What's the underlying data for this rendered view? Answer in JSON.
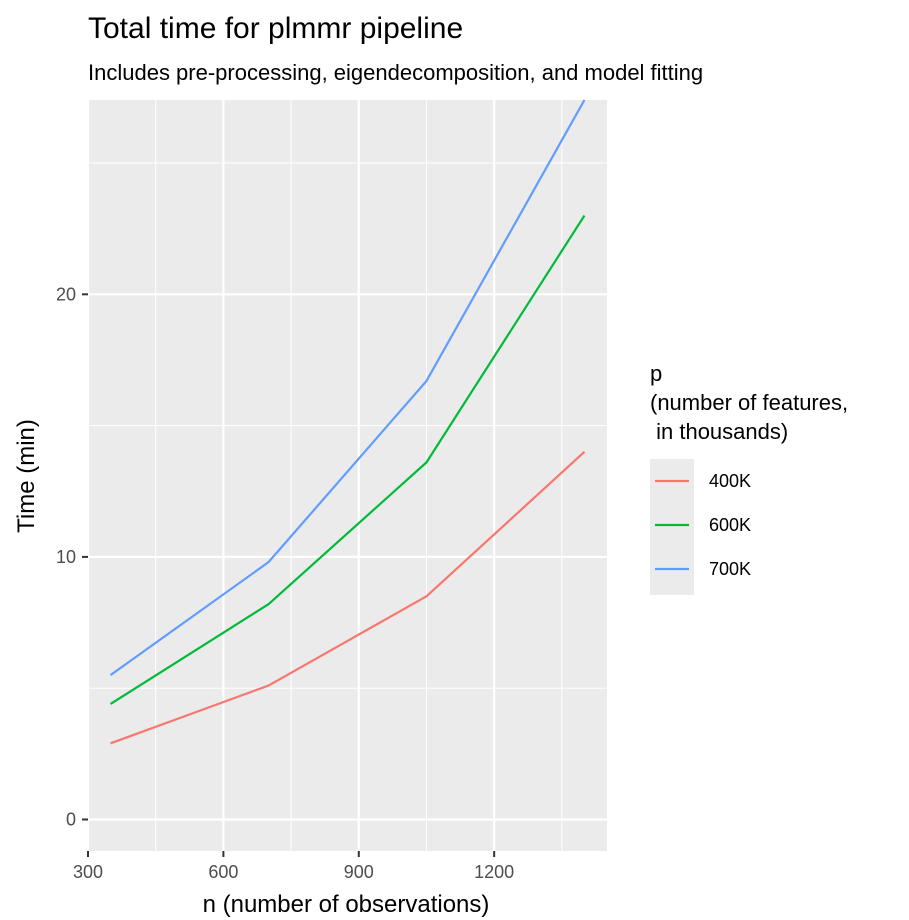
{
  "chart_data": {
    "type": "line",
    "title": "Total time for plmmr pipeline",
    "subtitle": "Includes pre-processing, eigendecomposition, and model fitting",
    "xlabel": "n (number of observations)",
    "ylabel": "Time (min)",
    "x": [
      350,
      700,
      1050,
      1400
    ],
    "xlim": [
      300,
      1450
    ],
    "ylim": [
      -1.2,
      27.4
    ],
    "x_ticks": [
      300,
      600,
      900,
      1200
    ],
    "x_tick_labels": [
      "300",
      "600",
      "900",
      "1200"
    ],
    "y_ticks": [
      0,
      10,
      20
    ],
    "y_tick_labels": [
      "0",
      "10",
      "20"
    ],
    "grid": true,
    "panel_background": "#ebebeb",
    "legend": {
      "position": "right",
      "title_lines": [
        "p",
        "(number of features,",
        " in thousands)"
      ]
    },
    "series": [
      {
        "name": "400K",
        "color": "#F8766D",
        "values": [
          2.9,
          5.1,
          8.5,
          14.0
        ]
      },
      {
        "name": "600K",
        "color": "#00BA38",
        "values": [
          4.4,
          8.2,
          13.6,
          23.0
        ]
      },
      {
        "name": "700K",
        "color": "#619CFF",
        "values": [
          5.5,
          9.8,
          16.7,
          27.4
        ]
      }
    ]
  }
}
